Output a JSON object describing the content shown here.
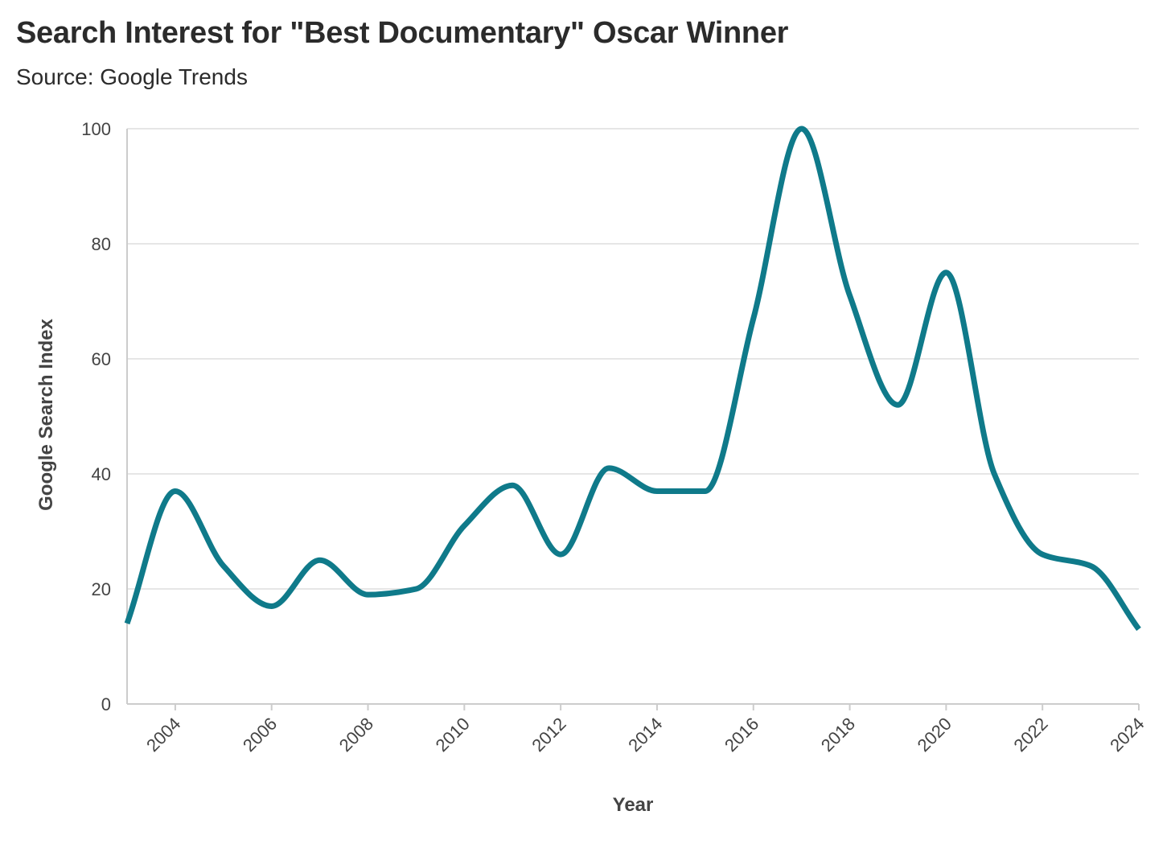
{
  "title": "Search Interest for \"Best Documentary\" Oscar Winner",
  "subtitle": "Source: Google Trends",
  "colors": {
    "line": "#0f7a8a",
    "grid": "#e6e6e6",
    "axis": "#cccccc",
    "text": "#444444"
  },
  "chart_data": {
    "type": "line",
    "title": "Search Interest for \"Best Documentary\" Oscar Winner",
    "subtitle": "Source: Google Trends",
    "xlabel": "Year",
    "ylabel": "Google Search Index",
    "xlim": [
      2003,
      2024
    ],
    "ylim": [
      0,
      100
    ],
    "x_ticks": [
      2004,
      2006,
      2008,
      2010,
      2012,
      2014,
      2016,
      2018,
      2020,
      2022,
      2024
    ],
    "y_ticks": [
      0,
      20,
      40,
      60,
      80,
      100
    ],
    "grid": true,
    "curve": "smooth",
    "series": [
      {
        "x": [
          2003,
          2004,
          2005,
          2006,
          2007,
          2008,
          2009,
          2010,
          2011,
          2012,
          2013,
          2014,
          2015,
          2016,
          2017,
          2018,
          2019,
          2020,
          2021,
          2022,
          2023,
          2024
        ],
        "values": [
          14,
          37,
          24,
          17,
          25,
          19,
          20,
          31,
          38,
          26,
          41,
          37,
          37,
          67,
          100,
          71,
          52,
          75,
          40,
          26,
          24,
          13
        ]
      }
    ]
  }
}
